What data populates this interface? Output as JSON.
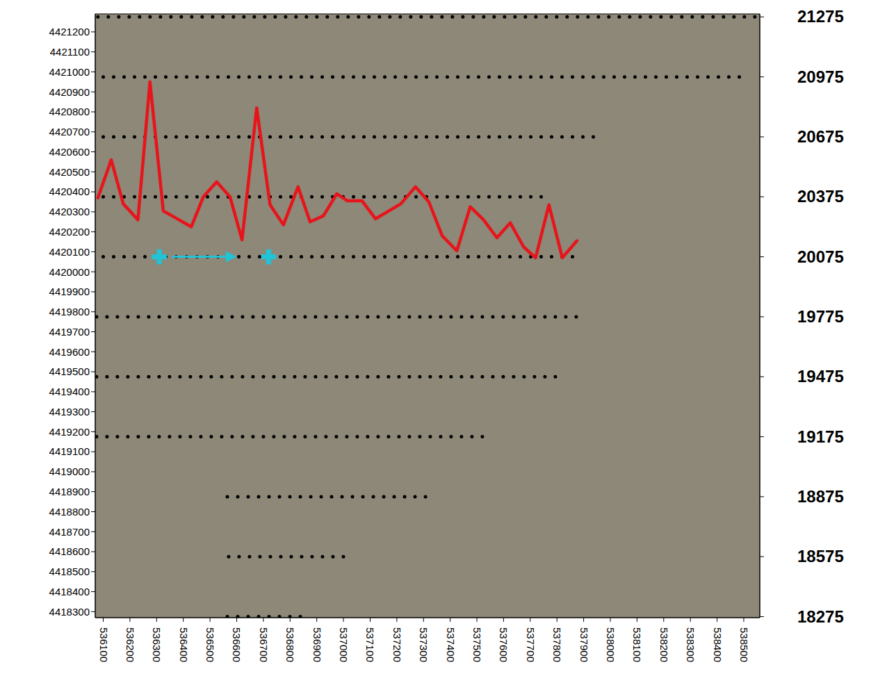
{
  "chart_data": {
    "type": "map",
    "xlim": [
      536070,
      538560
    ],
    "xticks": [
      536100,
      536200,
      536300,
      536400,
      536500,
      536600,
      536700,
      536800,
      536900,
      537000,
      537100,
      537200,
      537300,
      537400,
      537500,
      537600,
      537700,
      537800,
      537900,
      538000,
      538100,
      538200,
      538300,
      538400,
      538500
    ],
    "ylim": [
      4418270,
      4421290
    ],
    "yticks": [
      4418300,
      4418400,
      4418500,
      4418600,
      4418700,
      4418800,
      4418900,
      4419000,
      4419100,
      4419200,
      4419300,
      4419400,
      4419500,
      4419600,
      4419700,
      4419800,
      4419900,
      4420000,
      4420100,
      4420200,
      4420300,
      4420400,
      4420500,
      4420600,
      4420700,
      4420800,
      4420900,
      4421000,
      4421100,
      4421200
    ],
    "y2lim": [
      18270,
      21290
    ],
    "y2ticks": [
      18275,
      18575,
      18875,
      19175,
      19475,
      19775,
      20075,
      20375,
      20675,
      20975,
      21275
    ],
    "series": [
      {
        "type": "line",
        "color": "#000000",
        "line_style": "dotted",
        "x": [
          536080,
          538550
        ],
        "values": [
          4421275,
          4421275
        ]
      },
      {
        "type": "line",
        "color": "#000000",
        "line_style": "dotted",
        "x": [
          536100,
          538490
        ],
        "values": [
          4420975,
          4420975
        ]
      },
      {
        "type": "line",
        "color": "#000000",
        "line_style": "dotted",
        "x": [
          536100,
          537975
        ],
        "values": [
          4420675,
          4420675
        ]
      },
      {
        "type": "line",
        "color": "#000000",
        "line_style": "dotted",
        "x": [
          536100,
          537770
        ],
        "values": [
          4420375,
          4420375
        ]
      },
      {
        "type": "line",
        "color": "#000000",
        "line_style": "dotted",
        "x": [
          536100,
          537880
        ],
        "values": [
          4420075,
          4420075
        ]
      },
      {
        "type": "line",
        "color": "#000000",
        "line_style": "dotted",
        "x": [
          536075,
          537875
        ],
        "values": [
          4419775,
          4419775
        ]
      },
      {
        "type": "line",
        "color": "#000000",
        "line_style": "dotted",
        "x": [
          536075,
          537830
        ],
        "values": [
          4419475,
          4419475
        ]
      },
      {
        "type": "line",
        "color": "#000000",
        "line_style": "dotted",
        "x": [
          536075,
          537550
        ],
        "values": [
          4419175,
          4419175
        ]
      },
      {
        "type": "line",
        "color": "#000000",
        "line_style": "dotted",
        "x": [
          536565,
          537330
        ],
        "values": [
          4418875,
          4418875
        ]
      },
      {
        "type": "line",
        "color": "#000000",
        "line_style": "dotted",
        "x": [
          536570,
          537030
        ],
        "values": [
          4418575,
          4418575
        ]
      },
      {
        "type": "line",
        "color": "#000000",
        "line_style": "dotted",
        "x": [
          536565,
          536875
        ],
        "values": [
          4418275,
          4418275
        ]
      },
      {
        "type": "line",
        "color": "#e8141b",
        "line_style": "solid",
        "x": [
          536080,
          536130,
          536175,
          536230,
          536275,
          536325,
          536430,
          536475,
          536525,
          536575,
          536620,
          536675,
          536725,
          536775,
          536830,
          536875,
          536925,
          536975,
          537015,
          537070,
          537120,
          537215,
          537270,
          537320,
          537370,
          537425,
          537475,
          537525,
          537575,
          537625,
          537675,
          537720,
          537770,
          537820,
          537875
        ],
        "values": [
          4420370,
          4420560,
          4420340,
          4420260,
          4420950,
          4420305,
          4420225,
          4420375,
          4420450,
          4420375,
          4420160,
          4420820,
          4420335,
          4420235,
          4420425,
          4420250,
          4420280,
          4420390,
          4420355,
          4420355,
          4420265,
          4420340,
          4420425,
          4420350,
          4420180,
          4420105,
          4420325,
          4420260,
          4420170,
          4420245,
          4420125,
          4420070,
          4420335,
          4420070,
          4420155
        ]
      },
      {
        "type": "line",
        "color": "#22c3d6",
        "marker": "arrow",
        "x": [
          536360,
          536590
        ],
        "values": [
          4420075,
          4420075
        ]
      },
      {
        "type": "scatter",
        "color": "#22c3d6",
        "marker": "cross",
        "x": [
          536310,
          536720
        ],
        "values": [
          4420075,
          4420075
        ]
      }
    ]
  }
}
